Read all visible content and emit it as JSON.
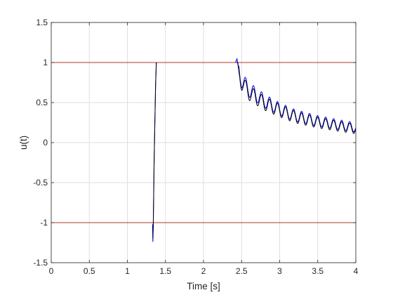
{
  "chart_data": {
    "type": "line",
    "title": "",
    "xlabel": "Time [s]",
    "ylabel": "u(t)",
    "xlim": [
      0,
      4
    ],
    "ylim": [
      -1.5,
      1.5
    ],
    "xticks": [
      0,
      0.5,
      1,
      1.5,
      2,
      2.5,
      3,
      3.5,
      4
    ],
    "xtick_labels": [
      "0",
      "0.5",
      "1",
      "1.5",
      "2",
      "2.5",
      "3",
      "3.5",
      "4"
    ],
    "yticks": [
      -1.5,
      -1,
      -0.5,
      0,
      0.5,
      1,
      1.5
    ],
    "ytick_labels": [
      "-1.5",
      "-1",
      "-0.5",
      "0",
      "0.5",
      "1",
      "1.5"
    ],
    "grid": true,
    "legend": "none",
    "reference_lines": [
      {
        "y": 1,
        "color": "#b33a2a"
      },
      {
        "y": -1,
        "color": "#b33a2a"
      }
    ],
    "series": [
      {
        "color": "#0000ff",
        "x": [
          1.33,
          1.335,
          1.34,
          1.345,
          1.35,
          1.36,
          1.37,
          1.38,
          2.42,
          2.44,
          2.45,
          2.47,
          2.5,
          2.6,
          2.8,
          3.0,
          3.2,
          3.5,
          3.8,
          4.0
        ],
        "y": [
          -1.02,
          -1.24,
          -1.05,
          -0.7,
          -0.3,
          0.2,
          0.7,
          1.0,
          1.0,
          1.05,
          0.98,
          0.88,
          0.78,
          0.66,
          0.52,
          0.42,
          0.34,
          0.27,
          0.22,
          0.19
        ]
      },
      {
        "color": "#000000",
        "x": [
          1.335,
          1.34,
          1.345,
          1.35,
          1.36,
          1.37,
          1.38,
          2.43,
          2.45,
          2.47,
          2.5,
          2.6,
          2.8,
          3.0,
          3.2,
          3.5,
          3.8,
          4.0
        ],
        "y": [
          -1.2,
          -1.0,
          -0.7,
          -0.3,
          0.2,
          0.7,
          1.0,
          1.0,
          1.0,
          0.85,
          0.75,
          0.62,
          0.49,
          0.4,
          0.32,
          0.25,
          0.2,
          0.17
        ]
      }
    ]
  }
}
